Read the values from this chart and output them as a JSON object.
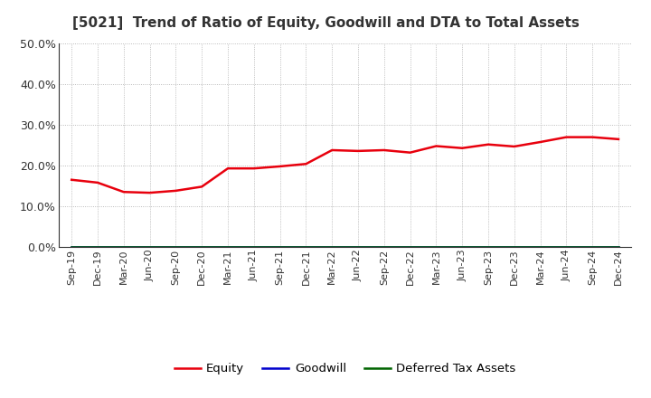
{
  "title": "[5021]  Trend of Ratio of Equity, Goodwill and DTA to Total Assets",
  "x_labels": [
    "Sep-19",
    "Dec-19",
    "Mar-20",
    "Jun-20",
    "Sep-20",
    "Dec-20",
    "Mar-21",
    "Jun-21",
    "Sep-21",
    "Dec-21",
    "Mar-22",
    "Jun-22",
    "Sep-22",
    "Dec-22",
    "Mar-23",
    "Jun-23",
    "Sep-23",
    "Dec-23",
    "Mar-24",
    "Jun-24",
    "Sep-24",
    "Dec-24"
  ],
  "equity": [
    0.165,
    0.158,
    0.135,
    0.133,
    0.138,
    0.148,
    0.193,
    0.193,
    0.198,
    0.204,
    0.238,
    0.236,
    0.238,
    0.232,
    0.248,
    0.243,
    0.252,
    0.247,
    0.258,
    0.27,
    0.27,
    0.265
  ],
  "goodwill": [
    0.0,
    0.0,
    0.0,
    0.0,
    0.0,
    0.0,
    0.0,
    0.0,
    0.0,
    0.0,
    0.0,
    0.0,
    0.0,
    0.0,
    0.0,
    0.0,
    0.0,
    0.0,
    0.0,
    0.0,
    0.0,
    0.0
  ],
  "dta": [
    0.0,
    0.0,
    0.0,
    0.0,
    0.0,
    0.0,
    0.0,
    0.0,
    0.0,
    0.0,
    0.0,
    0.0,
    0.0,
    0.0,
    0.0,
    0.0,
    0.0,
    0.0,
    0.0,
    0.0,
    0.0,
    0.0
  ],
  "equity_color": "#e8000d",
  "goodwill_color": "#0000cd",
  "dta_color": "#006400",
  "ylim": [
    0.0,
    0.5
  ],
  "yticks": [
    0.0,
    0.1,
    0.2,
    0.3,
    0.4,
    0.5
  ],
  "background_color": "#ffffff",
  "plot_bg_color": "#ffffff",
  "grid_color": "#aaaaaa",
  "title_fontsize": 11,
  "title_color": "#333333",
  "legend_labels": [
    "Equity",
    "Goodwill",
    "Deferred Tax Assets"
  ],
  "tick_fontsize": 8,
  "ytick_fontsize": 9
}
